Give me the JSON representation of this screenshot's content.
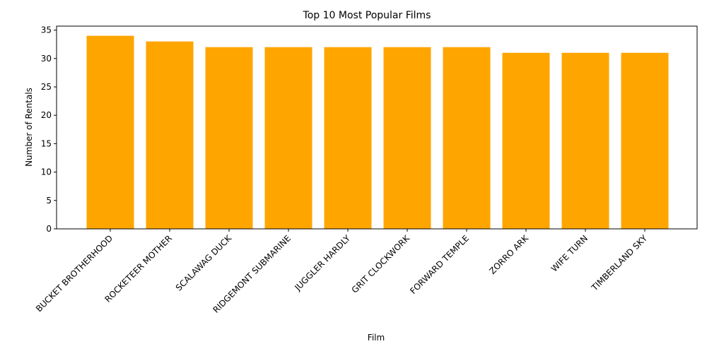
{
  "chart_data": {
    "type": "bar",
    "title": "Top 10 Most Popular Films",
    "xlabel": "Film",
    "ylabel": "Number of Rentals",
    "categories": [
      "BUCKET BROTHERHOOD",
      "ROCKETEER MOTHER",
      "SCALAWAG DUCK",
      "RIDGEMONT SUBMARINE",
      "JUGGLER HARDLY",
      "GRIT CLOCKWORK",
      "FORWARD TEMPLE",
      "ZORRO ARK",
      "WIFE TURN",
      "TIMBERLAND SKY"
    ],
    "values": [
      34,
      33,
      32,
      32,
      32,
      32,
      32,
      31,
      31,
      31
    ],
    "ylim": [
      0,
      35.7
    ],
    "yticks": [
      0,
      5,
      10,
      15,
      20,
      25,
      30,
      35
    ],
    "bar_color": "#ffa500",
    "grid": false,
    "legend": "none"
  }
}
